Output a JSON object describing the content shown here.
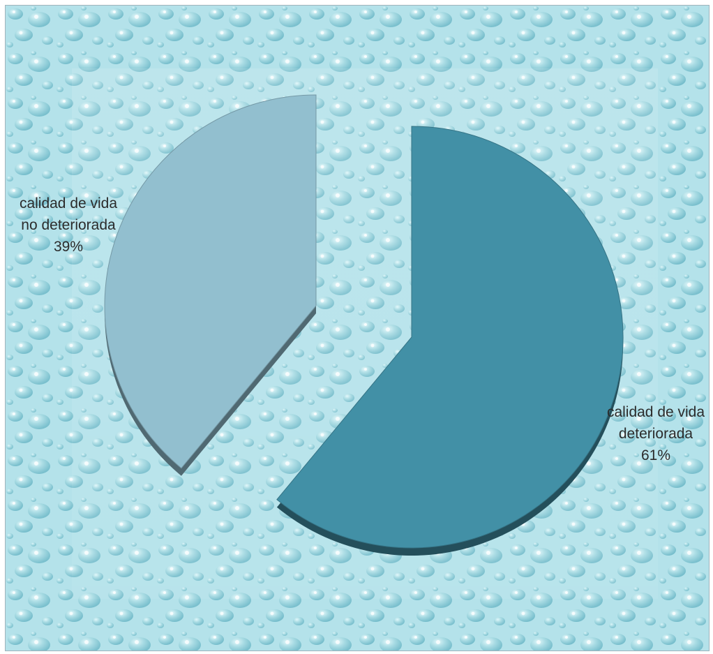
{
  "chart_data": {
    "type": "pie",
    "exploded": true,
    "style": "3d",
    "slices": [
      {
        "label_lines": [
          "calidad de vida",
          "deteriorada",
          "61%"
        ],
        "value": 61,
        "color": "#4290a6"
      },
      {
        "label_lines": [
          "calidad de vida",
          "no deteriorada",
          "39%"
        ],
        "value": 39,
        "color": "#92bfcf"
      }
    ],
    "background": "water-droplet texture, light aqua",
    "legend": "none"
  }
}
